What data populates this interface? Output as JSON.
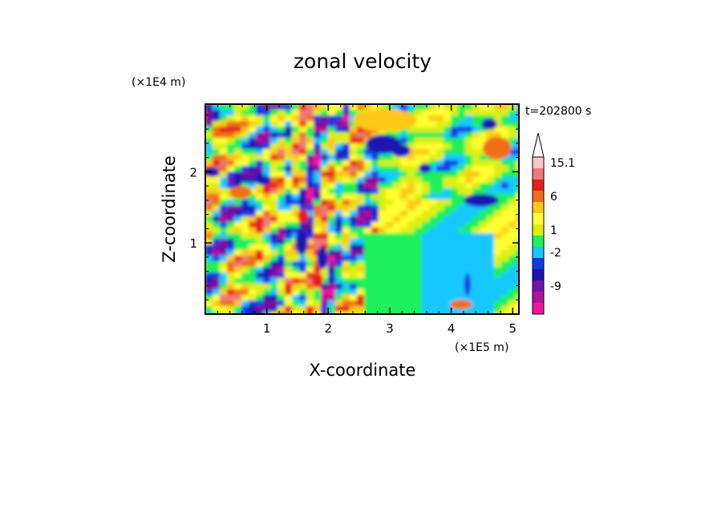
{
  "chart_data": {
    "type": "heatmap",
    "title": "zonal velocity",
    "xlabel": "X-coordinate",
    "ylabel": "Z-coordinate",
    "x_unit": "(×1E5 m)",
    "y_unit": "(×1E4 m)",
    "time_label": "t=202800 s",
    "xlim": [
      0,
      5.1
    ],
    "ylim": [
      0,
      2.95
    ],
    "x_ticks": [
      1,
      2,
      3,
      4,
      5
    ],
    "y_ticks": [
      1,
      2
    ],
    "colorbar": {
      "levels": [
        {
          "color": "#f0149e",
          "label": ""
        },
        {
          "color": "#b40f9e",
          "label": ""
        },
        {
          "color": "#7a10a6",
          "label": "-9"
        },
        {
          "color": "#1a14b4",
          "label": ""
        },
        {
          "color": "#1437e6",
          "label": ""
        },
        {
          "color": "#14c8ff",
          "label": "-2"
        },
        {
          "color": "#1ef05a",
          "label": ""
        },
        {
          "color": "#dcf00a",
          "label": "1"
        },
        {
          "color": "#ffff32",
          "label": ""
        },
        {
          "color": "#ffc814",
          "label": ""
        },
        {
          "color": "#f06e14",
          "label": "6"
        },
        {
          "color": "#e61e1e",
          "label": ""
        },
        {
          "color": "#f07878",
          "label": ""
        },
        {
          "color": "#ffc8c8",
          "label": "15.1"
        }
      ]
    }
  }
}
